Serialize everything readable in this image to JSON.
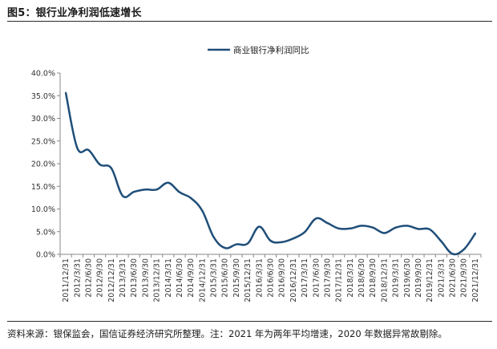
{
  "figure": {
    "title": "图5：银行业净利润低速增长",
    "source": "资料来源：银保监会，国信证券经济研究所整理。注：2021 年为两年平均增速，2020 年数据异常故剔除。"
  },
  "chart_data": {
    "type": "line",
    "title": "",
    "xlabel": "",
    "ylabel": "",
    "ylim": [
      0,
      40
    ],
    "yticks": [
      "0.0%",
      "5.0%",
      "10.0%",
      "15.0%",
      "20.0%",
      "25.0%",
      "30.0%",
      "35.0%",
      "40.0%"
    ],
    "grid": false,
    "legend_position": "top-center",
    "color": "#1f4e79",
    "categories": [
      "2011/12/31",
      "2012/3/31",
      "2012/6/30",
      "2012/9/30",
      "2012/12/31",
      "2013/3/31",
      "2013/6/30",
      "2013/9/30",
      "2013/12/31",
      "2014/3/31",
      "2014/6/30",
      "2014/9/30",
      "2014/12/31",
      "2015/3/31",
      "2015/6/30",
      "2015/9/30",
      "2015/12/31",
      "2016/3/31",
      "2016/6/30",
      "2016/9/30",
      "2016/12/31",
      "2017/3/31",
      "2017/6/30",
      "2017/9/30",
      "2017/12/31",
      "2018/3/31",
      "2018/6/30",
      "2018/9/30",
      "2018/12/31",
      "2019/3/31",
      "2019/6/30",
      "2019/9/30",
      "2019/12/31",
      "2021/3/31",
      "2021/6/30",
      "2021/9/30",
      "2021/12/31"
    ],
    "series": [
      {
        "name": "商业银行净利润同比",
        "values": [
          35.6,
          23.5,
          23.0,
          19.8,
          19.0,
          12.9,
          13.8,
          14.3,
          14.3,
          15.8,
          13.7,
          12.4,
          9.6,
          3.8,
          1.4,
          2.2,
          2.4,
          6.1,
          3.0,
          2.7,
          3.5,
          4.9,
          7.9,
          6.9,
          5.7,
          5.7,
          6.3,
          5.9,
          4.7,
          5.9,
          6.3,
          5.6,
          5.5,
          2.9,
          0.1,
          1.1,
          4.6
        ]
      }
    ]
  }
}
